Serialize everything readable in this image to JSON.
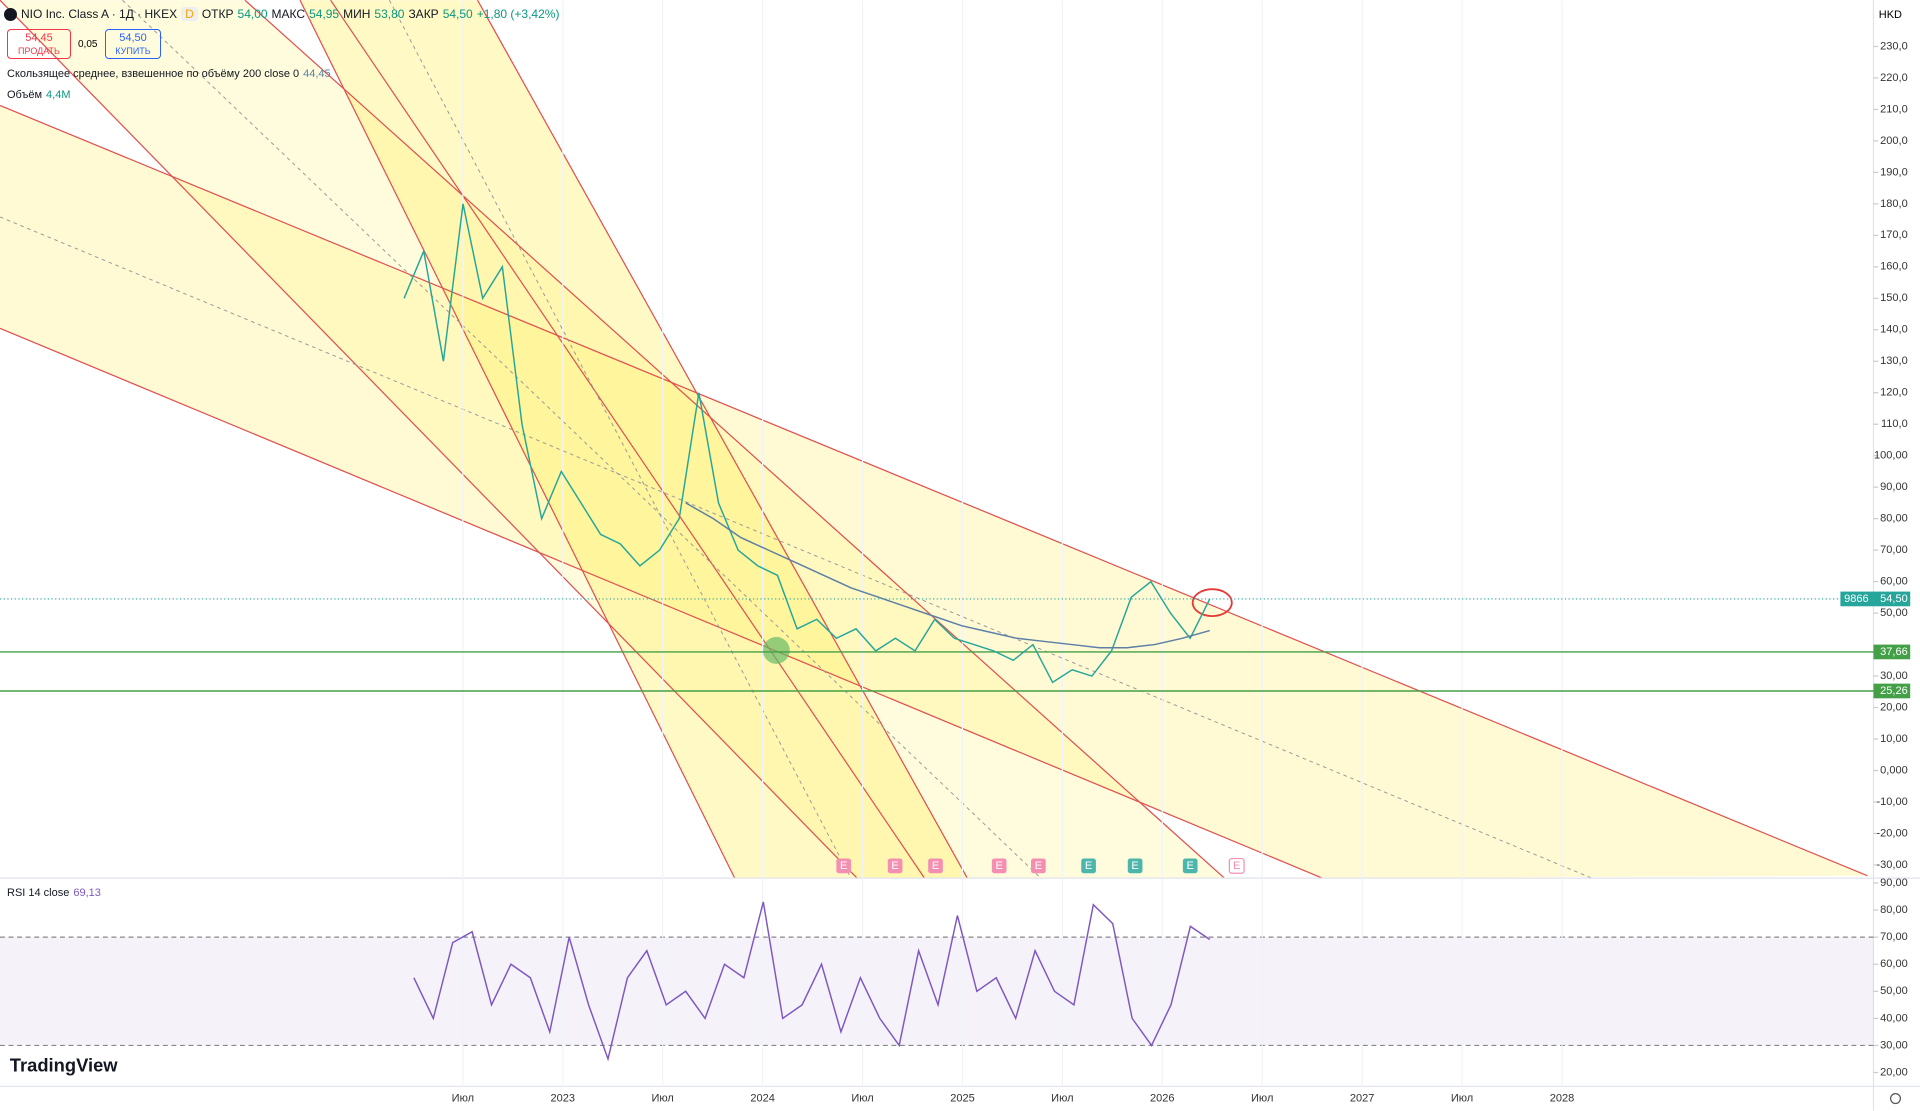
{
  "header": {
    "symbol": "NIO Inc. Class A · 1Д · HKEX",
    "badge": "D",
    "open_label": "ОТКР",
    "open": "54,00",
    "high_label": "МАКС",
    "high": "54,95",
    "low_label": "МИН",
    "low": "53,80",
    "close_label": "ЗАКР",
    "close": "54,50",
    "change": "+1,80 (+3,42%)",
    "currency": "HKD"
  },
  "trade": {
    "sell_price": "54,45",
    "sell_label": "ПРОДАТЬ",
    "spread": "0,05",
    "buy_price": "54,50",
    "buy_label": "КУПИТЬ"
  },
  "indicators": {
    "vwma_label": "Скользящее среднее, взвешенное по объёму 200 close 0",
    "vwma_value": "44,45",
    "volume_label": "Объём",
    "volume_value": "4,4M",
    "rsi_label": "RSI 14 close",
    "rsi_value": "69,13"
  },
  "price_axis": {
    "ylim": [
      -34.2,
      244.7
    ],
    "ticks": [
      {
        "value": 230,
        "label": "230,0"
      },
      {
        "value": 220,
        "label": "220,0"
      },
      {
        "value": 210,
        "label": "210,0"
      },
      {
        "value": 200,
        "label": "200,0"
      },
      {
        "value": 190,
        "label": "190,0"
      },
      {
        "value": 180,
        "label": "180,0"
      },
      {
        "value": 170,
        "label": "170,0"
      },
      {
        "value": 160,
        "label": "160,0"
      },
      {
        "value": 150,
        "label": "150,0"
      },
      {
        "value": 140,
        "label": "140,0"
      },
      {
        "value": 130,
        "label": "130,0"
      },
      {
        "value": 120,
        "label": "120,0"
      },
      {
        "value": 110,
        "label": "110,0"
      },
      {
        "value": 100,
        "label": "100,00"
      },
      {
        "value": 90,
        "label": "90,00"
      },
      {
        "value": 80,
        "label": "80,00"
      },
      {
        "value": 70,
        "label": "70,00"
      },
      {
        "value": 60,
        "label": "60,00"
      },
      {
        "value": 50,
        "label": "50,00"
      },
      {
        "value": 30,
        "label": "30,00"
      },
      {
        "value": 20,
        "label": "20,00"
      },
      {
        "value": 10,
        "label": "10,00"
      },
      {
        "value": 0,
        "label": "0,000"
      },
      {
        "value": -10,
        "label": "-10,00"
      },
      {
        "value": -20,
        "label": "-20,00"
      },
      {
        "value": -30,
        "label": "-30,00"
      }
    ],
    "current": {
      "value": 54.5,
      "label": "54,50"
    },
    "countdown": "9866",
    "levels": [
      {
        "value": 37.66,
        "label": "37,66"
      },
      {
        "value": 25.26,
        "label": "25,26"
      }
    ]
  },
  "price_series": {
    "color": "#26a69a",
    "values": [
      150,
      165,
      130,
      180,
      150,
      160,
      110,
      80,
      95,
      85,
      75,
      72,
      65,
      70,
      80,
      120,
      85,
      70,
      65,
      62,
      45,
      48,
      42,
      45,
      38,
      42,
      38,
      48,
      42,
      40,
      38,
      35,
      40,
      28,
      32,
      30,
      38,
      55,
      60,
      50,
      42,
      54.5
    ]
  },
  "vwma_series": {
    "color": "#5b7fa6",
    "values": [
      85,
      80,
      74,
      70,
      66,
      62,
      58,
      55,
      52,
      49,
      46,
      44,
      42,
      41,
      40,
      39,
      39,
      40,
      42,
      44.45
    ]
  },
  "rsi_axis": {
    "ylim": [
      14.9,
      91.8
    ],
    "ticks": [
      {
        "value": 90,
        "label": "90,00"
      },
      {
        "value": 80,
        "label": "80,00"
      },
      {
        "value": 70,
        "label": "70,00"
      },
      {
        "value": 60,
        "label": "60,00"
      },
      {
        "value": 50,
        "label": "50,00"
      },
      {
        "value": 40,
        "label": "40,00"
      },
      {
        "value": 30,
        "label": "30,00"
      },
      {
        "value": 20,
        "label": "20,00"
      }
    ],
    "band": [
      30,
      70
    ]
  },
  "rsi_series": {
    "color": "#7e57c2",
    "values": [
      55,
      40,
      68,
      72,
      45,
      60,
      55,
      35,
      70,
      45,
      25,
      55,
      65,
      45,
      50,
      40,
      60,
      55,
      83,
      40,
      45,
      60,
      35,
      55,
      40,
      30,
      65,
      45,
      78,
      50,
      55,
      40,
      65,
      50,
      45,
      82,
      75,
      40,
      30,
      45,
      74,
      69.13
    ]
  },
  "time_axis": [
    "Июл",
    "2023",
    "Июл",
    "2024",
    "Июл",
    "2025",
    "Июл",
    "2026",
    "Июл",
    "2027",
    "Июл",
    "2028"
  ],
  "logo": "TradingView"
}
